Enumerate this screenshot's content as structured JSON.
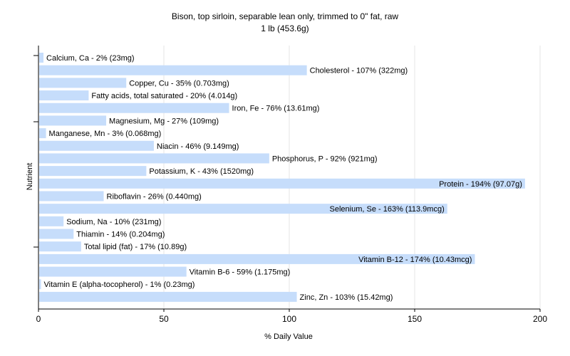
{
  "chart_data": {
    "type": "bar",
    "orientation": "horizontal",
    "title": "Bison, top sirloin, separable lean only, trimmed to 0\" fat, raw",
    "subtitle": "1 lb (453.6g)",
    "xlabel": "% Daily Value",
    "ylabel": "Nutrient",
    "xlim": [
      0,
      200
    ],
    "xticks": [
      "0",
      "50",
      "100",
      "150",
      "200"
    ],
    "grid": "vertical",
    "bar_color": "#c6ddfb",
    "categories": [
      "Calcium, Ca",
      "Cholesterol",
      "Copper, Cu",
      "Fatty acids, total saturated",
      "Iron, Fe",
      "Magnesium, Mg",
      "Manganese, Mn",
      "Niacin",
      "Phosphorus, P",
      "Potassium, K",
      "Protein",
      "Riboflavin",
      "Selenium, Se",
      "Sodium, Na",
      "Thiamin",
      "Total lipid (fat)",
      "Vitamin B-12",
      "Vitamin B-6",
      "Vitamin E (alpha-tocopherol)",
      "Zinc, Zn"
    ],
    "values": [
      2,
      107,
      35,
      20,
      76,
      27,
      3,
      46,
      92,
      43,
      194,
      26,
      163,
      10,
      14,
      17,
      174,
      59,
      1,
      103
    ],
    "labels": [
      "Calcium, Ca - 2% (23mg)",
      "Cholesterol - 107% (322mg)",
      "Copper, Cu - 35% (0.703mg)",
      "Fatty acids, total saturated - 20% (4.014g)",
      "Iron, Fe - 76% (13.61mg)",
      "Magnesium, Mg - 27% (109mg)",
      "Manganese, Mn - 3% (0.068mg)",
      "Niacin - 46% (9.149mg)",
      "Phosphorus, P - 92% (921mg)",
      "Potassium, K - 43% (1520mg)",
      "Protein - 194% (97.07g)",
      "Riboflavin - 26% (0.440mg)",
      "Selenium, Se - 163% (113.9mcg)",
      "Sodium, Na - 10% (231mg)",
      "Thiamin - 14% (0.204mg)",
      "Total lipid (fat) - 17% (10.89g)",
      "Vitamin B-12 - 174% (10.43mcg)",
      "Vitamin B-6 - 59% (1.175mg)",
      "Vitamin E (alpha-tocopherol) - 1% (0.23mg)",
      "Zinc, Zn - 103% (15.42mg)"
    ]
  }
}
